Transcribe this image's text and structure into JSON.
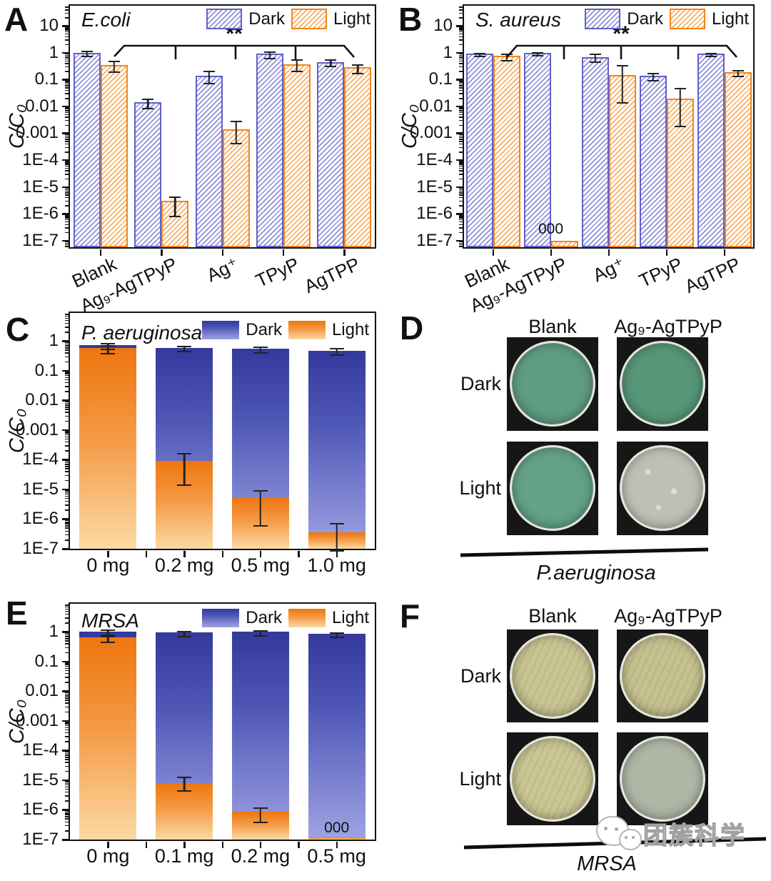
{
  "watermark": {
    "text": "团簇科学"
  },
  "colors": {
    "dark_border": "#6060c8",
    "dark_hatch": "#8f8fd9",
    "light_border": "#f0861c",
    "light_hatch": "#f7ae62",
    "grad_dark_top": "#343a9c",
    "grad_dark_bottom": "#9fa3e4",
    "grad_light_top": "#ee760f",
    "grad_light_bottom": "#fcd9a4",
    "error_bar": "#222222"
  },
  "chart_data": [
    {
      "panel_label": "A",
      "type": "bar",
      "bar_style": "hatched",
      "title": "E.coli",
      "y_axis": {
        "label": "C/C₀",
        "scale": "log",
        "range": [
          1e-07,
          10
        ],
        "ticks": [
          "10",
          "1",
          "0.1",
          "0.01",
          "0.001",
          "1E-4",
          "1E-5",
          "1E-6",
          "1E-7"
        ]
      },
      "legend": {
        "dark": "Dark",
        "light": "Light"
      },
      "significance": "**",
      "categories": [
        "Blank",
        "Ag₉-AgTPyP",
        "Ag⁺",
        "TPyP",
        "AgTPP"
      ],
      "series": [
        {
          "name": "Dark",
          "values": [
            1.0,
            0.014,
            0.14,
            0.9,
            0.45
          ],
          "err_lo": [
            0.85,
            0.01,
            0.085,
            0.72,
            0.37
          ],
          "err_hi": [
            1.18,
            0.019,
            0.21,
            1.1,
            0.56
          ]
        },
        {
          "name": "Light",
          "values": [
            0.35,
            3e-06,
            0.0014,
            0.38,
            0.28
          ],
          "err_lo": [
            0.22,
            9.5e-07,
            0.0005,
            0.24,
            0.2
          ],
          "err_hi": [
            0.5,
            4.5e-06,
            0.0029,
            0.55,
            0.38
          ]
        }
      ],
      "annotations": []
    },
    {
      "panel_label": "B",
      "type": "bar",
      "bar_style": "hatched",
      "title": "S. aureus",
      "y_axis": {
        "label": "C/C₀",
        "scale": "log",
        "range": [
          1e-07,
          10
        ],
        "ticks": [
          "10",
          "1",
          "0.1",
          "0.01",
          "0.001",
          "1E-4",
          "1E-5",
          "1E-6",
          "1E-7"
        ]
      },
      "legend": {
        "dark": "Dark",
        "light": "Light"
      },
      "significance": "**",
      "categories": [
        "Blank",
        "Ag₉-AgTPyP",
        "Ag⁺",
        "TPyP",
        "AgTPP"
      ],
      "series": [
        {
          "name": "Dark",
          "values": [
            0.92,
            1.0,
            0.7,
            0.14,
            0.93
          ],
          "err_lo": [
            0.85,
            0.95,
            0.52,
            0.11,
            0.88
          ],
          "err_hi": [
            1.0,
            1.06,
            0.95,
            0.18,
            1.0
          ]
        },
        {
          "name": "Light",
          "values": [
            0.75,
            1e-07,
            0.15,
            0.02,
            0.19
          ],
          "err_lo": [
            0.6,
            1e-07,
            0.016,
            0.0022,
            0.155
          ],
          "err_hi": [
            0.95,
            1e-07,
            0.35,
            0.05,
            0.23
          ]
        }
      ],
      "annotations": [
        {
          "series": 1,
          "index": 1,
          "text": "000"
        }
      ]
    },
    {
      "panel_label": "C",
      "type": "bar",
      "bar_style": "gradient-overlay",
      "title": "P. aeruginosa",
      "y_axis": {
        "label": "C/C₀",
        "scale": "log",
        "range": [
          1e-07,
          1
        ],
        "ticks": [
          "1",
          "0.1",
          "0.01",
          "0.001",
          "1E-4",
          "1E-5",
          "1E-6",
          "1E-7"
        ]
      },
      "legend": {
        "dark": "Dark",
        "light": "Light"
      },
      "significance": "",
      "categories": [
        "0 mg",
        "0.2 mg",
        "0.5 mg",
        "1.0 mg"
      ],
      "series": [
        {
          "name": "Dark",
          "values": [
            0.75,
            0.6,
            0.55,
            0.46
          ],
          "err_lo": [
            0.62,
            0.53,
            0.46,
            0.4
          ],
          "err_hi": [
            0.88,
            0.68,
            0.65,
            0.58
          ]
        },
        {
          "name": "Light",
          "values": [
            0.58,
            9e-05,
            5e-06,
            3.5e-07
          ],
          "err_lo": [
            0.45,
            1.6e-05,
            7e-07,
            1e-07
          ],
          "err_hi": [
            0.72,
            0.00017,
            9.5e-06,
            7.5e-07
          ]
        }
      ],
      "annotations": []
    },
    {
      "panel_label": "E",
      "type": "bar",
      "bar_style": "gradient-overlay",
      "title": "MRSA",
      "y_axis": {
        "label": "C/C₀",
        "scale": "log",
        "range": [
          1e-07,
          1
        ],
        "ticks": [
          "1",
          "0.1",
          "0.01",
          "0.001",
          "1E-4",
          "1E-5",
          "1E-6",
          "1E-7"
        ]
      },
      "legend": {
        "dark": "Dark",
        "light": "Light"
      },
      "significance": "",
      "categories": [
        "0 mg",
        "0.1 mg",
        "0.2 mg",
        "0.5 mg"
      ],
      "series": [
        {
          "name": "Dark",
          "values": [
            1.0,
            0.95,
            1.0,
            0.88
          ],
          "err_lo": [
            0.82,
            0.8,
            0.85,
            0.78
          ],
          "err_hi": [
            1.2,
            1.1,
            1.15,
            0.98
          ]
        },
        {
          "name": "Light",
          "values": [
            0.65,
            8e-06,
            8.5e-07,
            1e-07
          ],
          "err_lo": [
            0.52,
            5e-06,
            4.5e-07,
            1e-07
          ],
          "err_hi": [
            0.82,
            1.3e-05,
            1.2e-06,
            1e-07
          ]
        }
      ],
      "annotations": [
        {
          "series": 1,
          "index": 3,
          "text": "000"
        }
      ]
    }
  ],
  "photo_panels": [
    {
      "panel_label": "D",
      "columns": [
        "Blank",
        "Ag₉-AgTPyP"
      ],
      "rows": [
        "Dark",
        "Light"
      ],
      "caption": "P.aeruginosa",
      "dishes": [
        [
          {
            "c1": "#5f9c82",
            "c2": "#4d8c72",
            "spots": false,
            "streaks": false
          },
          {
            "c1": "#579678",
            "c2": "#47866a",
            "spots": false,
            "streaks": false
          }
        ],
        [
          {
            "c1": "#63a287",
            "c2": "#529277",
            "spots": false,
            "streaks": false
          },
          {
            "c1": "#bdc1b5",
            "c2": "#a7aea0",
            "spots": true,
            "streaks": false
          }
        ]
      ]
    },
    {
      "panel_label": "F",
      "columns": [
        "Blank",
        "Ag₉-AgTPyP"
      ],
      "rows": [
        "Dark",
        "Light"
      ],
      "caption": "MRSA",
      "dishes": [
        [
          {
            "c1": "#c9c492",
            "c2": "#b2ad7c",
            "spots": false,
            "streaks": true
          },
          {
            "c1": "#c6c18f",
            "c2": "#afaa79",
            "spots": false,
            "streaks": true
          }
        ],
        [
          {
            "c1": "#cbc693",
            "c2": "#b6b181",
            "spots": false,
            "streaks": true
          },
          {
            "c1": "#aeb6a6",
            "c2": "#99a494",
            "spots": false,
            "streaks": false
          }
        ]
      ]
    }
  ]
}
